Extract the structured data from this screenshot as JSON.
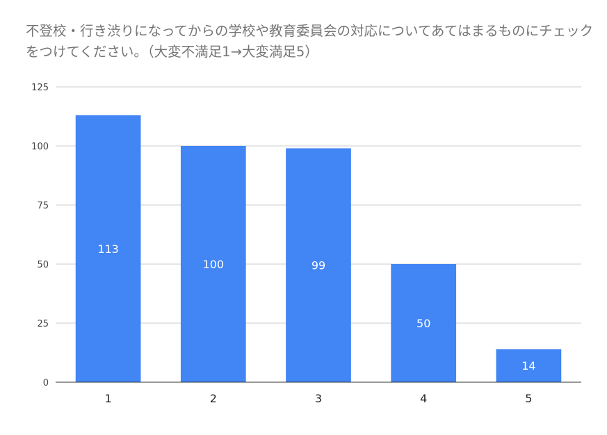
{
  "chart_data": {
    "type": "bar",
    "title": "不登校・行き渋りになってからの学校や教育委員会の対応についてあてはまるものにチェックをつけてください。（大変不満足1→大変満足5）",
    "categories": [
      "1",
      "2",
      "3",
      "4",
      "5"
    ],
    "values": [
      113,
      100,
      99,
      50,
      14
    ],
    "data_labels": [
      "113",
      "100",
      "99",
      "50",
      "14"
    ],
    "ylim": [
      0,
      125
    ],
    "yticks": [
      0,
      25,
      50,
      75,
      100,
      125
    ],
    "ytick_labels": [
      "0",
      "25",
      "50",
      "75",
      "100",
      "125"
    ],
    "grid": true,
    "legend": "none",
    "xlabel": "",
    "ylabel": "",
    "colors": {
      "bar": "#4285f4",
      "grid": "#cccccc",
      "axis": "#333333",
      "title": "#757575"
    }
  }
}
